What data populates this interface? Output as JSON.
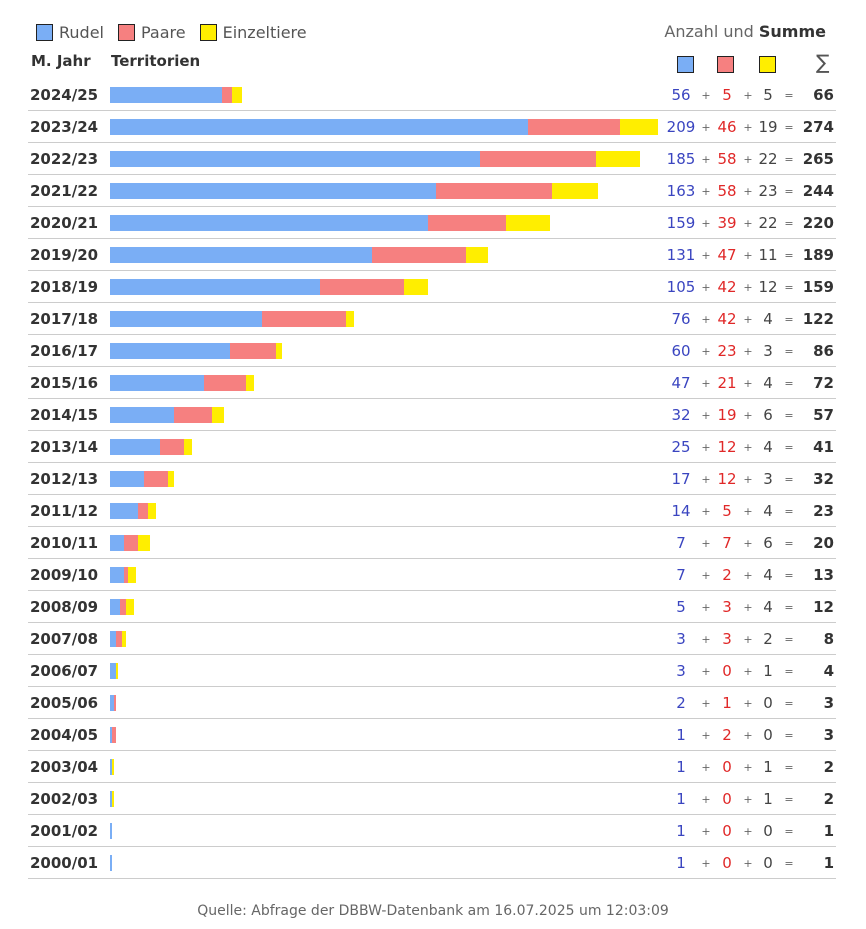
{
  "legend": {
    "rudel": "Rudel",
    "paare": "Paare",
    "einzeltiere": "Einzeltiere"
  },
  "header": {
    "count_prefix": "Anzahl und",
    "count_bold": "Summe",
    "year_col": "M. Jahr",
    "territory_col": "Territorien",
    "sum_symbol": "∑"
  },
  "colors": {
    "rudel": "#7aaef5",
    "paare": "#f68080",
    "einzeltiere": "#ffee00",
    "rudel_text": "#3a45c0",
    "paare_text": "#e02828",
    "separator": "#cccccc"
  },
  "chart_data": {
    "type": "bar",
    "orientation": "horizontal",
    "stacked": true,
    "categories": [
      "2024/25",
      "2023/24",
      "2022/23",
      "2021/22",
      "2020/21",
      "2019/20",
      "2018/19",
      "2017/18",
      "2016/17",
      "2015/16",
      "2014/15",
      "2013/14",
      "2012/13",
      "2011/12",
      "2010/11",
      "2009/10",
      "2008/09",
      "2007/08",
      "2006/07",
      "2005/06",
      "2004/05",
      "2003/04",
      "2002/03",
      "2001/02",
      "2000/01"
    ],
    "series": [
      {
        "name": "Rudel",
        "values": [
          56,
          209,
          185,
          163,
          159,
          131,
          105,
          76,
          60,
          47,
          32,
          25,
          17,
          14,
          7,
          7,
          5,
          3,
          3,
          2,
          1,
          1,
          1,
          1,
          1
        ]
      },
      {
        "name": "Paare",
        "values": [
          5,
          46,
          58,
          58,
          39,
          47,
          42,
          42,
          23,
          21,
          19,
          12,
          12,
          5,
          7,
          2,
          3,
          3,
          0,
          1,
          2,
          0,
          0,
          0,
          0
        ]
      },
      {
        "name": "Einzeltiere",
        "values": [
          5,
          19,
          22,
          23,
          22,
          11,
          12,
          4,
          3,
          4,
          6,
          4,
          3,
          4,
          6,
          4,
          4,
          2,
          1,
          0,
          0,
          1,
          1,
          0,
          0
        ]
      }
    ],
    "totals": [
      66,
      274,
      265,
      244,
      220,
      189,
      159,
      122,
      86,
      72,
      57,
      41,
      32,
      23,
      20,
      13,
      12,
      8,
      4,
      3,
      3,
      2,
      2,
      1,
      1
    ],
    "plus": "+",
    "equals": "="
  },
  "source": "Quelle: Abfrage der DBBW-Datenbank am 16.07.2025 um 12:03:09"
}
